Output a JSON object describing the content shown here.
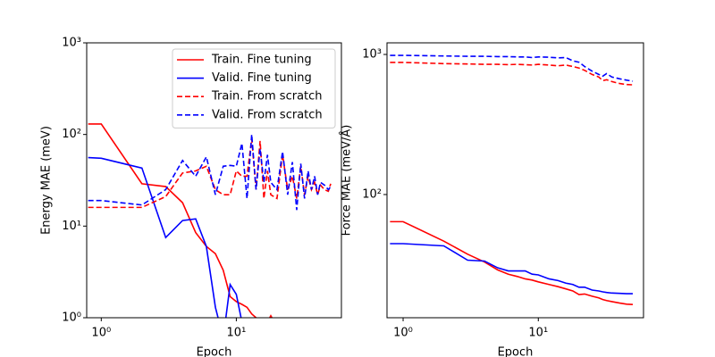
{
  "chart_data": [
    {
      "type": "line",
      "xscale": "log",
      "yscale": "log",
      "xlabel": "Epoch",
      "ylabel": "Energy MAE (meV)",
      "xlim": [
        0.78,
        60
      ],
      "ylim": [
        1,
        1000
      ],
      "xticks": [
        {
          "value": 1,
          "label": "10⁰"
        },
        {
          "value": 10,
          "label": "10¹"
        }
      ],
      "yticks": [
        {
          "value": 1,
          "label": "10⁰"
        },
        {
          "value": 10,
          "label": "10¹"
        },
        {
          "value": 100,
          "label": "10²"
        },
        {
          "value": 1000,
          "label": "10³"
        }
      ],
      "legend": "upper right",
      "x": [
        0.8,
        1,
        2,
        3,
        4,
        5,
        6,
        7,
        8,
        9,
        10,
        11,
        12,
        13,
        14,
        15,
        16,
        17,
        18,
        20,
        22,
        24,
        26,
        28,
        30,
        32,
        34,
        36,
        38,
        40,
        42,
        45,
        48,
        50
      ],
      "series": [
        {
          "name": "Train. Fine tuning",
          "color": "#ff0000",
          "style": "solid",
          "values": [
            130,
            130,
            29,
            27,
            18,
            8.5,
            6,
            5,
            3.3,
            1.7,
            1.5,
            1.4,
            1.3,
            1.1,
            1.0,
            0.9,
            0.8,
            0.9,
            1.05,
            0.8,
            null,
            null,
            null,
            null,
            null,
            null,
            null,
            null,
            null,
            null,
            null,
            null,
            null,
            null
          ]
        },
        {
          "name": "Valid. Fine tuning",
          "color": "#0000ff",
          "style": "solid",
          "values": [
            56,
            55,
            43,
            7.5,
            11.5,
            12,
            6,
            1.3,
            0.6,
            2.3,
            1.8,
            0.9,
            0.6,
            null,
            null,
            null,
            null,
            null,
            null,
            null,
            null,
            null,
            null,
            null,
            null,
            null,
            null,
            null,
            null,
            null,
            null,
            null,
            null,
            null
          ]
        },
        {
          "name": "Train. From scratch",
          "color": "#ff0000",
          "style": "dashed",
          "values": [
            16,
            16,
            16,
            21,
            38,
            40,
            45,
            25,
            22,
            22,
            40,
            35,
            35,
            90,
            25,
            85,
            20,
            40,
            22,
            20,
            60,
            25,
            35,
            20,
            45,
            22,
            35,
            25,
            30,
            22,
            28,
            25,
            24,
            29
          ]
        },
        {
          "name": "Valid. From scratch",
          "color": "#0000ff",
          "style": "dashed",
          "values": [
            19,
            19,
            17,
            25,
            52,
            35,
            57,
            22,
            45,
            46,
            45,
            80,
            20,
            100,
            25,
            70,
            30,
            60,
            30,
            25,
            65,
            22,
            50,
            15,
            48,
            20,
            40,
            25,
            35,
            22,
            30,
            28,
            25,
            27
          ]
        }
      ]
    },
    {
      "type": "line",
      "xscale": "log",
      "yscale": "log",
      "xlabel": "Epoch",
      "ylabel": "Force MAE (meV/Å)",
      "xlim": [
        0.76,
        60
      ],
      "ylim": [
        13.2,
        1210
      ],
      "xticks": [
        {
          "value": 1,
          "label": "10⁰"
        },
        {
          "value": 10,
          "label": "10¹"
        }
      ],
      "yticks": [
        {
          "value": 100,
          "label": "10²"
        },
        {
          "value": 1000,
          "label": "10³"
        }
      ],
      "x": [
        0.8,
        1,
        2,
        3,
        4,
        5,
        6,
        7,
        8,
        9,
        10,
        12,
        14,
        16,
        18,
        20,
        22,
        25,
        28,
        30,
        32,
        35,
        40,
        45,
        50
      ],
      "series": [
        {
          "color": "#ff0000",
          "style": "solid",
          "values": [
            64,
            64,
            46.5,
            37.5,
            33,
            29,
            27,
            26,
            25,
            24.5,
            23.8,
            22.8,
            22,
            21.2,
            20.5,
            19.3,
            19.5,
            18.8,
            18.3,
            17.8,
            17.5,
            17.2,
            16.8,
            16.5,
            16.4
          ]
        },
        {
          "color": "#0000ff",
          "style": "solid",
          "values": [
            44.6,
            44.6,
            43,
            34,
            33.5,
            30,
            28.5,
            28.5,
            28.5,
            27,
            26.7,
            25,
            24.3,
            23.3,
            22.8,
            21.8,
            21.8,
            20.8,
            20.5,
            20.2,
            20,
            19.8,
            19.7,
            19.6,
            19.6
          ]
        },
        {
          "color": "#ff0000",
          "style": "dashed",
          "values": [
            877,
            877,
            860,
            855,
            850,
            850,
            845,
            850,
            845,
            840,
            850,
            840,
            830,
            840,
            820,
            800,
            770,
            720,
            690,
            650,
            660,
            640,
            620,
            610,
            607
          ]
        },
        {
          "color": "#0000ff",
          "style": "dashed",
          "values": [
            985,
            985,
            975,
            970,
            970,
            965,
            965,
            960,
            960,
            950,
            960,
            955,
            945,
            950,
            900,
            880,
            820,
            760,
            720,
            700,
            730,
            690,
            670,
            655,
            644
          ]
        }
      ]
    }
  ]
}
